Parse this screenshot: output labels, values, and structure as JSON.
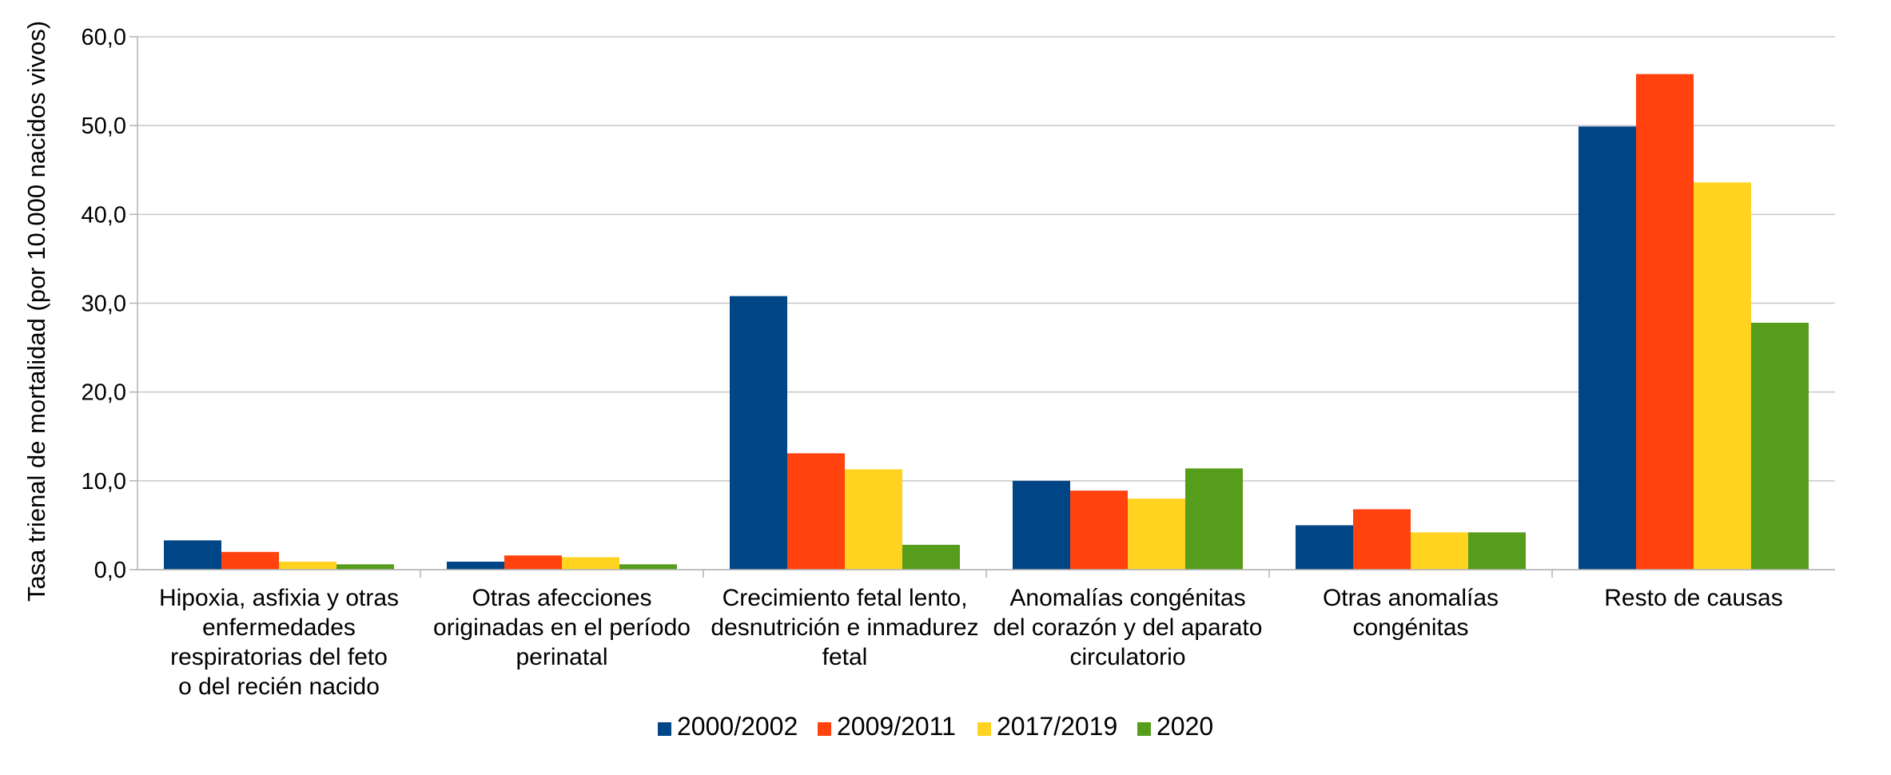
{
  "chart_data": {
    "type": "bar",
    "title": "",
    "xlabel": "",
    "ylabel": "Tasa trienal de mortalidad (por 10.000 nacidos vivos)",
    "ylim": [
      0,
      60
    ],
    "yticks": [
      "0,0",
      "10,0",
      "20,0",
      "30,0",
      "40,0",
      "50,0",
      "60,0"
    ],
    "grid": true,
    "legend_position": "bottom",
    "categories": [
      [
        "Hipoxia, asfixia y otras",
        "enfermedades",
        "respiratorias del feto",
        "o del recién nacido"
      ],
      [
        "Otras afecciones",
        "originadas en el período",
        "perinatal"
      ],
      [
        "Crecimiento fetal lento,",
        "desnutrición e inmadurez",
        "fetal"
      ],
      [
        "Anomalías congénitas",
        "del corazón y del aparato",
        "circulatorio"
      ],
      [
        "Otras anomalías",
        "congénitas"
      ],
      [
        "Resto de causas"
      ]
    ],
    "series": [
      {
        "name": "2000/2002",
        "color": "#004586",
        "values": [
          3.3,
          0.9,
          30.8,
          10.0,
          5.0,
          49.9
        ]
      },
      {
        "name": "2009/2011",
        "color": "#FF420E",
        "values": [
          2.0,
          1.6,
          13.1,
          8.9,
          6.8,
          55.8
        ]
      },
      {
        "name": "2017/2019",
        "color": "#FFD320",
        "values": [
          0.9,
          1.4,
          11.3,
          8.0,
          4.2,
          43.6
        ]
      },
      {
        "name": "2020",
        "color": "#579D1C",
        "values": [
          0.6,
          0.6,
          2.8,
          11.4,
          4.2,
          27.8
        ]
      }
    ]
  }
}
